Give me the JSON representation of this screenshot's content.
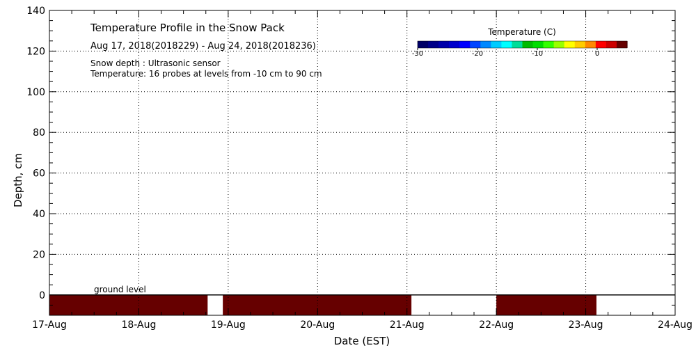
{
  "chart_data": {
    "type": "heatmap",
    "title": "Temperature Profile in the Snow Pack",
    "subtitle": "Aug 17, 2018(2018229) - Aug 24, 2018(2018236)",
    "notes": [
      "Snow depth : Ultrasonic sensor",
      "Temperature: 16 probes at levels from -10 cm to 90 cm"
    ],
    "ground_label": "ground level",
    "xlabel": "Date (EST)",
    "ylabel": "Depth, cm",
    "x_range": [
      0,
      7
    ],
    "x_ticks": [
      0,
      1,
      2,
      3,
      4,
      5,
      6,
      7
    ],
    "x_tick_labels": [
      "17-Aug",
      "18-Aug",
      "19-Aug",
      "20-Aug",
      "21-Aug",
      "22-Aug",
      "23-Aug",
      "24-Aug"
    ],
    "ylim": [
      -10,
      140
    ],
    "y_ticks": [
      0,
      20,
      40,
      60,
      80,
      100,
      120,
      140
    ],
    "y_tick_labels": [
      "0",
      "20",
      "40",
      "60",
      "80",
      "100",
      "120",
      "140"
    ],
    "grid": true,
    "colorbar": {
      "title": "Temperature (C)",
      "range": [
        -30,
        5
      ],
      "tick_values": [
        -30,
        -20,
        -10,
        0
      ],
      "tick_labels": [
        "-30",
        "-20",
        "-10",
        "0"
      ],
      "colors": [
        "#000066",
        "#000088",
        "#0000aa",
        "#0000cc",
        "#0000ff",
        "#0044ff",
        "#0088ff",
        "#00ccff",
        "#00ffff",
        "#00dd99",
        "#00bb00",
        "#00dd00",
        "#33ff00",
        "#99ff00",
        "#ffff00",
        "#ffcc00",
        "#ff8800",
        "#ff0000",
        "#cc0000",
        "#660000"
      ],
      "placement": "top-right"
    },
    "data_blocks": [
      {
        "x_start": 0.0,
        "x_end": 1.77,
        "depth_top": 0,
        "depth_bottom": -10,
        "temp_c": 5
      },
      {
        "x_start": 1.94,
        "x_end": 4.05,
        "depth_top": 0,
        "depth_bottom": -10,
        "temp_c": 5
      },
      {
        "x_start": 5.0,
        "x_end": 6.12,
        "depth_top": 0,
        "depth_bottom": -10,
        "temp_c": 5
      }
    ],
    "block_color": "#660000",
    "ground_line_color": "#000000"
  }
}
